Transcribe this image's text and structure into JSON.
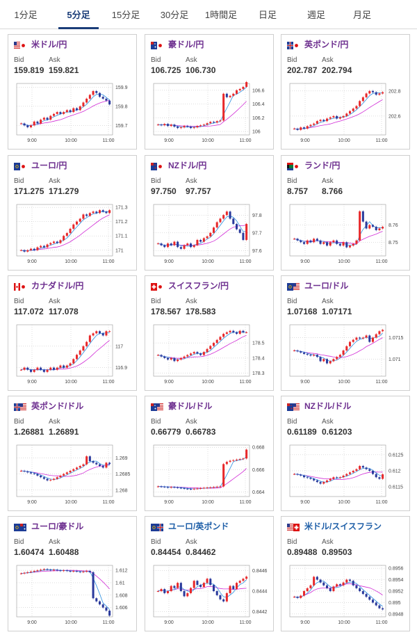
{
  "tabs": [
    {
      "label": "1分足"
    },
    {
      "label": "5分足",
      "active": true
    },
    {
      "label": "15分足"
    },
    {
      "label": "30分足"
    },
    {
      "label": "1時間足"
    },
    {
      "label": "日足"
    },
    {
      "label": "週足"
    },
    {
      "label": "月足"
    }
  ],
  "labels": {
    "bid": "Bid",
    "ask": "Ask"
  },
  "colors": {
    "up": "#e8282a",
    "down": "#2a3a9c",
    "ma_short": "#2a8ee0",
    "ma_long": "#d12bd6",
    "name_purple": "#6d2f8f",
    "name_blue": "#1f5fa8",
    "tab_active": "#1a3c78"
  },
  "cards": [
    {
      "name": "米ドル/円",
      "flag": "us-jp-flag-icon",
      "bid": "159.819",
      "ask": "159.821",
      "chart_data": {
        "type": "candlestick",
        "xticks": [
          "9:00",
          "10:00",
          "11:00"
        ],
        "yticks": [
          "159.9",
          "159.8",
          "159.7"
        ],
        "ylim": [
          159.65,
          159.92
        ],
        "close": [
          159.71,
          159.7,
          159.69,
          159.7,
          159.72,
          159.71,
          159.73,
          159.74,
          159.73,
          159.75,
          159.76,
          159.77,
          159.76,
          159.77,
          159.78,
          159.77,
          159.79,
          159.78,
          159.8,
          159.82,
          159.84,
          159.86,
          159.88,
          159.87,
          159.85,
          159.84,
          159.83,
          159.81
        ]
      }
    },
    {
      "name": "豪ドル/円",
      "flag": "au-jp-flag-icon",
      "bid": "106.725",
      "ask": "106.730",
      "chart_data": {
        "type": "candlestick",
        "xticks": [
          "9:00",
          "10:00",
          "11:00"
        ],
        "yticks": [
          "106.6",
          "106.4",
          "106.2",
          "106"
        ],
        "ylim": [
          105.95,
          106.7
        ],
        "close": [
          106.1,
          106.09,
          106.11,
          106.08,
          106.1,
          106.07,
          106.05,
          106.06,
          106.08,
          106.07,
          106.05,
          106.06,
          106.08,
          106.09,
          106.1,
          106.12,
          106.14,
          106.13,
          106.15,
          106.16,
          106.55,
          106.5,
          106.52,
          106.55,
          106.6,
          106.62,
          106.65,
          106.72
        ]
      }
    },
    {
      "name": "英ポンド/円",
      "flag": "gb-jp-flag-icon",
      "bid": "202.787",
      "ask": "202.794",
      "chart_data": {
        "type": "candlestick",
        "xticks": [
          "9:00",
          "10:00",
          "11:00"
        ],
        "yticks": [
          "202.8",
          "202.6"
        ],
        "ylim": [
          202.45,
          202.86
        ],
        "close": [
          202.5,
          202.49,
          202.51,
          202.5,
          202.52,
          202.53,
          202.54,
          202.56,
          202.57,
          202.56,
          202.58,
          202.59,
          202.6,
          202.58,
          202.59,
          202.6,
          202.62,
          202.64,
          202.66,
          202.68,
          202.72,
          202.75,
          202.78,
          202.8,
          202.79,
          202.77,
          202.78,
          202.79
        ]
      }
    },
    {
      "name": "ユーロ/円",
      "flag": "eu-jp-flag-icon",
      "bid": "171.275",
      "ask": "171.279",
      "chart_data": {
        "type": "candlestick",
        "xticks": [
          "9:00",
          "10:00",
          "11:00"
        ],
        "yticks": [
          "171.3",
          "171.2",
          "171.1",
          "171"
        ],
        "ylim": [
          170.96,
          171.32
        ],
        "close": [
          171.0,
          170.99,
          171.0,
          171.01,
          171.0,
          171.02,
          171.03,
          171.02,
          171.04,
          171.05,
          171.06,
          171.05,
          171.07,
          171.1,
          171.12,
          171.15,
          171.18,
          171.2,
          171.22,
          171.25,
          171.24,
          171.26,
          171.27,
          171.26,
          171.28,
          171.27,
          171.26,
          171.28
        ]
      }
    },
    {
      "name": "NZドル/円",
      "flag": "nz-jp-flag-icon",
      "bid": "97.750",
      "ask": "97.757",
      "chart_data": {
        "type": "candlestick",
        "xticks": [
          "9:00",
          "10:00",
          "11:00"
        ],
        "yticks": [
          "97.8",
          "97.7",
          "97.6"
        ],
        "ylim": [
          97.57,
          97.86
        ],
        "close": [
          97.64,
          97.63,
          97.62,
          97.64,
          97.63,
          97.65,
          97.62,
          97.61,
          97.63,
          97.64,
          97.62,
          97.63,
          97.66,
          97.65,
          97.67,
          97.68,
          97.7,
          97.73,
          97.76,
          97.78,
          97.8,
          97.82,
          97.78,
          97.75,
          97.72,
          97.7,
          97.66,
          97.75
        ]
      }
    },
    {
      "name": "ランド/円",
      "flag": "za-jp-flag-icon",
      "bid": "8.757",
      "ask": "8.766",
      "chart_data": {
        "type": "candlestick",
        "xticks": [
          "9:00",
          "10:00",
          "11:00"
        ],
        "yticks": [
          "8.76",
          "8.75"
        ],
        "ylim": [
          8.742,
          8.772
        ],
        "close": [
          8.752,
          8.751,
          8.75,
          8.749,
          8.751,
          8.75,
          8.752,
          8.751,
          8.749,
          8.75,
          8.748,
          8.75,
          8.751,
          8.749,
          8.748,
          8.75,
          8.747,
          8.748,
          8.749,
          8.751,
          8.768,
          8.762,
          8.758,
          8.76,
          8.759,
          8.757,
          8.758,
          8.759
        ]
      }
    },
    {
      "name": "カナダドル/円",
      "flag": "ca-jp-flag-icon",
      "bid": "117.072",
      "ask": "117.078",
      "chart_data": {
        "type": "candlestick",
        "xticks": [
          "9:00",
          "10:00",
          "11:00"
        ],
        "yticks": [
          "117",
          "116.9"
        ],
        "ylim": [
          116.86,
          117.1
        ],
        "close": [
          116.89,
          116.9,
          116.89,
          116.88,
          116.89,
          116.9,
          116.89,
          116.88,
          116.89,
          116.9,
          116.89,
          116.9,
          116.91,
          116.9,
          116.91,
          116.92,
          116.94,
          116.96,
          116.98,
          117.0,
          117.02,
          117.05,
          117.06,
          117.07,
          117.06,
          117.05,
          117.07,
          117.07
        ]
      }
    },
    {
      "name": "スイスフラン/円",
      "flag": "ch-jp-flag-icon",
      "bid": "178.567",
      "ask": "178.583",
      "chart_data": {
        "type": "candlestick",
        "xticks": [
          "9:00",
          "10:00",
          "11:00"
        ],
        "yticks": [
          "178.5",
          "178.4",
          "178.3"
        ],
        "ylim": [
          178.28,
          178.62
        ],
        "close": [
          178.42,
          178.41,
          178.4,
          178.39,
          178.4,
          178.38,
          178.39,
          178.4,
          178.41,
          178.42,
          178.43,
          178.44,
          178.43,
          178.42,
          178.44,
          178.46,
          178.48,
          178.5,
          178.52,
          178.54,
          178.56,
          178.57,
          178.58,
          178.57,
          178.56,
          178.58,
          178.57,
          178.57
        ]
      }
    },
    {
      "name": "ユーロ/ドル",
      "flag": "eu-us-flag-icon",
      "bid": "1.07168",
      "ask": "1.07171",
      "chart_data": {
        "type": "candlestick",
        "xticks": [
          "9:00",
          "10:00",
          "11:00"
        ],
        "yticks": [
          "1.0715",
          "1.071"
        ],
        "ylim": [
          1.0706,
          1.0718
        ],
        "close": [
          1.0712,
          1.07118,
          1.07115,
          1.07112,
          1.0711,
          1.07108,
          1.0711,
          1.07105,
          1.07095,
          1.071,
          1.0709,
          1.07095,
          1.071,
          1.07105,
          1.0711,
          1.0712,
          1.0713,
          1.0714,
          1.07145,
          1.0715,
          1.07148,
          1.0715,
          1.07155,
          1.0714,
          1.0715,
          1.07158,
          1.07165,
          1.07168
        ]
      }
    },
    {
      "name": "英ポンド/ドル",
      "flag": "gb-us-flag-icon",
      "bid": "1.26881",
      "ask": "1.26891",
      "chart_data": {
        "type": "candlestick",
        "xticks": [
          "9:00",
          "10:00",
          "11:00"
        ],
        "yticks": [
          "1.269",
          "1.2685",
          "1.268"
        ],
        "ylim": [
          1.2678,
          1.2694
        ],
        "close": [
          1.2686,
          1.26858,
          1.26855,
          1.26852,
          1.2685,
          1.26845,
          1.2684,
          1.26835,
          1.2683,
          1.26832,
          1.26835,
          1.2684,
          1.26845,
          1.2685,
          1.26855,
          1.2686,
          1.26865,
          1.2687,
          1.26875,
          1.2688,
          1.26905,
          1.2689,
          1.26885,
          1.2688,
          1.26875,
          1.2687,
          1.26885,
          1.26881
        ]
      }
    },
    {
      "name": "豪ドル/ドル",
      "flag": "au-us-flag-icon",
      "bid": "0.66779",
      "ask": "0.66783",
      "chart_data": {
        "type": "candlestick",
        "xticks": [
          "9:00",
          "10:00",
          "11:00"
        ],
        "yticks": [
          "0.668",
          "0.666",
          "0.664"
        ],
        "ylim": [
          0.6636,
          0.6682
        ],
        "close": [
          0.6645,
          0.66448,
          0.66445,
          0.6644,
          0.66445,
          0.66442,
          0.66438,
          0.66435,
          0.6643,
          0.66428,
          0.66425,
          0.6643,
          0.66432,
          0.66435,
          0.66438,
          0.6644,
          0.66442,
          0.66445,
          0.66448,
          0.6645,
          0.6665,
          0.6667,
          0.6668,
          0.66685,
          0.6669,
          0.66695,
          0.667,
          0.66779
        ]
      }
    },
    {
      "name": "NZドル/ドル",
      "flag": "nz-us-flag-icon",
      "bid": "0.61189",
      "ask": "0.61203",
      "chart_data": {
        "type": "candlestick",
        "xticks": [
          "9:00",
          "10:00",
          "11:00"
        ],
        "yticks": [
          "0.6125",
          "0.612",
          "0.6115"
        ],
        "ylim": [
          0.6112,
          0.6128
        ],
        "close": [
          0.6119,
          0.61188,
          0.61185,
          0.6118,
          0.61178,
          0.61175,
          0.6117,
          0.61165,
          0.6116,
          0.61165,
          0.6117,
          0.61175,
          0.6118,
          0.61178,
          0.6118,
          0.61185,
          0.6119,
          0.61195,
          0.612,
          0.61205,
          0.61215,
          0.6121,
          0.61205,
          0.612,
          0.6119,
          0.6118,
          0.61175,
          0.61189
        ]
      }
    },
    {
      "name": "ユーロ/豪ドル",
      "flag": "eu-au-flag-icon",
      "bid": "1.60474",
      "ask": "1.60488",
      "chart_data": {
        "type": "candlestick",
        "xticks": [
          "9:00",
          "10:00",
          "11:00"
        ],
        "yticks": [
          "1.612",
          "1.61",
          "1.608",
          "1.606"
        ],
        "ylim": [
          1.6045,
          1.6128
        ],
        "close": [
          1.6115,
          1.6116,
          1.6117,
          1.6118,
          1.6119,
          1.612,
          1.6121,
          1.6122,
          1.6121,
          1.612,
          1.6121,
          1.612,
          1.6119,
          1.612,
          1.6119,
          1.6118,
          1.6119,
          1.6118,
          1.6117,
          1.6118,
          1.6119,
          1.6117,
          1.6075,
          1.607,
          1.6065,
          1.606,
          1.6055,
          1.6047
        ]
      }
    },
    {
      "name": "ユーロ/英ポンド",
      "flag": "eu-gb-flag-icon",
      "bid": "0.84454",
      "ask": "0.84462",
      "chart_data": {
        "type": "candlestick",
        "xticks": [
          "9:00",
          "10:00",
          "11:00"
        ],
        "yticks": [
          "0.8446",
          "0.8444",
          "0.8442"
        ],
        "ylim": [
          0.84415,
          0.84465
        ],
        "close": [
          0.8444,
          0.84442,
          0.84438,
          0.8444,
          0.84445,
          0.84443,
          0.84448,
          0.8444,
          0.84435,
          0.84438,
          0.84443,
          0.8445,
          0.84446,
          0.84444,
          0.84448,
          0.84452,
          0.84446,
          0.8444,
          0.84436,
          0.84432,
          0.8443,
          0.84438,
          0.84445,
          0.84442,
          0.84448,
          0.8445,
          0.84452,
          0.84454
        ]
      }
    },
    {
      "name": "米ドル/スイスフラン",
      "flag": "us-ch-flag-icon",
      "bid": "0.89488",
      "ask": "0.89503",
      "chart_data": {
        "type": "candlestick",
        "xticks": [
          "9:00",
          "10:00",
          "11:00"
        ],
        "yticks": [
          "0.8956",
          "0.8954",
          "0.8952",
          "0.895",
          "0.8948"
        ],
        "ylim": [
          0.89475,
          0.89565
        ],
        "close": [
          0.8951,
          0.89508,
          0.89512,
          0.8952,
          0.89525,
          0.8953,
          0.89545,
          0.8954,
          0.89535,
          0.8953,
          0.89525,
          0.8952,
          0.89528,
          0.89532,
          0.8953,
          0.89535,
          0.8954,
          0.89538,
          0.8953,
          0.89525,
          0.8952,
          0.89515,
          0.8951,
          0.89505,
          0.895,
          0.89495,
          0.8949,
          0.89488
        ]
      }
    }
  ]
}
